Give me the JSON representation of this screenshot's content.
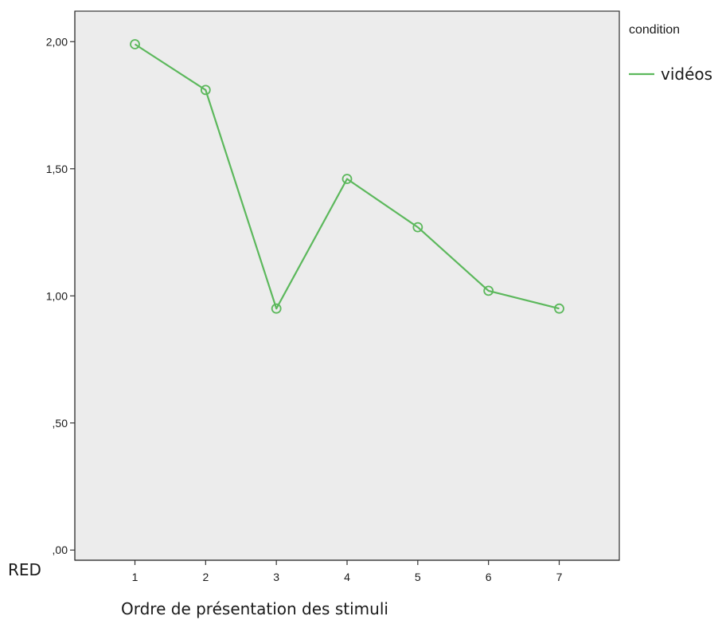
{
  "chart_data": {
    "type": "line",
    "xlabel": "Ordre de présentation des stimuli",
    "ylabel": "RED",
    "x": [
      1,
      2,
      3,
      4,
      5,
      6,
      7
    ],
    "x_tick_labels": [
      "1",
      "2",
      "3",
      "4",
      "5",
      "6",
      "7"
    ],
    "y_tick_values": [
      0,
      0.5,
      1.0,
      1.5,
      2.0
    ],
    "y_tick_labels": [
      ",00",
      ",50",
      "1,00",
      "1,50",
      "2,00"
    ],
    "ylim": [
      -0.04,
      2.12
    ],
    "xlim": [
      0.15,
      7.85
    ],
    "grid": false,
    "legend": {
      "title": "condition",
      "placement": "top-right outside"
    },
    "series": [
      {
        "name": "vidéos",
        "color": "#5cb85c",
        "marker": "open-circle",
        "values": [
          1.99,
          1.81,
          0.95,
          1.46,
          1.27,
          1.02,
          0.95
        ]
      }
    ],
    "colors": {
      "plot_background": "#ececec",
      "axis": "#333333"
    }
  }
}
